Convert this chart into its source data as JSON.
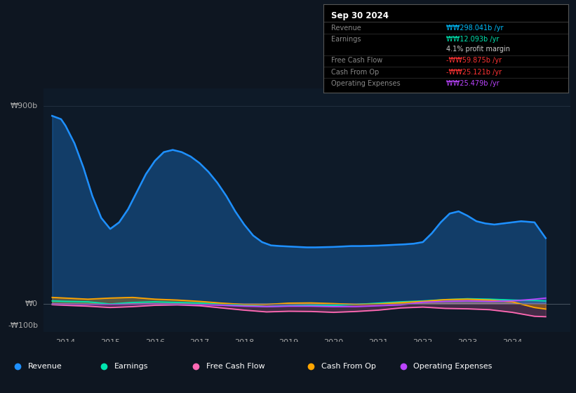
{
  "bg_color": "#0e1621",
  "plot_bg_color": "#0e1a28",
  "title": "Sep 30 2024",
  "info_box_rows": [
    {
      "label": "Revenue",
      "value": "₩₩298.041b /yr",
      "value_color": "#00bfff"
    },
    {
      "label": "Earnings",
      "value": "₩₩12.093b /yr",
      "value_color": "#00e5b0"
    },
    {
      "label": "",
      "value": "4.1% profit margin",
      "value_color": "#cccccc"
    },
    {
      "label": "Free Cash Flow",
      "value": "-₩₩59.875b /yr",
      "value_color": "#ff3333"
    },
    {
      "label": "Cash From Op",
      "value": "-₩₩25.121b /yr",
      "value_color": "#ff3333"
    },
    {
      "label": "Operating Expenses",
      "value": "₩₩25.479b /yr",
      "value_color": "#bb44ff"
    }
  ],
  "ylabel_top": "₩900b",
  "ylabel_zero": "₩0",
  "ylabel_bottom": "-₩100b",
  "ylim": [
    -130,
    980
  ],
  "xlim": [
    2013.5,
    2025.3
  ],
  "xtick_labels": [
    "2014",
    "2015",
    "2016",
    "2017",
    "2018",
    "2019",
    "2020",
    "2021",
    "2022",
    "2023",
    "2024"
  ],
  "xtick_pos": [
    2014,
    2015,
    2016,
    2017,
    2018,
    2019,
    2020,
    2021,
    2022,
    2023,
    2024
  ],
  "legend": [
    {
      "label": "Revenue",
      "color": "#1e90ff"
    },
    {
      "label": "Earnings",
      "color": "#00e5b0"
    },
    {
      "label": "Free Cash Flow",
      "color": "#ff69b4"
    },
    {
      "label": "Cash From Op",
      "color": "#ffa500"
    },
    {
      "label": "Operating Expenses",
      "color": "#bb44ff"
    }
  ],
  "revenue_x": [
    2013.7,
    2013.9,
    2014.0,
    2014.2,
    2014.4,
    2014.6,
    2014.8,
    2015.0,
    2015.2,
    2015.4,
    2015.6,
    2015.8,
    2016.0,
    2016.2,
    2016.4,
    2016.6,
    2016.8,
    2017.0,
    2017.2,
    2017.4,
    2017.6,
    2017.8,
    2018.0,
    2018.2,
    2018.4,
    2018.6,
    2018.8,
    2019.0,
    2019.2,
    2019.4,
    2019.6,
    2019.8,
    2020.0,
    2020.2,
    2020.4,
    2020.6,
    2020.8,
    2021.0,
    2021.2,
    2021.4,
    2021.6,
    2021.8,
    2022.0,
    2022.2,
    2022.4,
    2022.6,
    2022.8,
    2023.0,
    2023.2,
    2023.4,
    2023.6,
    2023.8,
    2024.0,
    2024.2,
    2024.5,
    2024.75
  ],
  "revenue_y": [
    855,
    840,
    810,
    730,
    620,
    490,
    390,
    340,
    370,
    430,
    510,
    590,
    650,
    690,
    700,
    690,
    670,
    640,
    600,
    550,
    490,
    420,
    360,
    310,
    280,
    265,
    262,
    260,
    258,
    256,
    256,
    257,
    258,
    260,
    262,
    262,
    263,
    264,
    266,
    268,
    270,
    273,
    280,
    320,
    370,
    410,
    420,
    400,
    375,
    365,
    360,
    365,
    370,
    375,
    370,
    298
  ],
  "earnings_x": [
    2013.7,
    2014.0,
    2014.5,
    2015.0,
    2015.5,
    2016.0,
    2016.5,
    2017.0,
    2017.5,
    2018.0,
    2018.5,
    2019.0,
    2019.5,
    2020.0,
    2020.5,
    2021.0,
    2021.5,
    2022.0,
    2022.5,
    2023.0,
    2023.5,
    2024.0,
    2024.5,
    2024.75
  ],
  "earnings_y": [
    12,
    10,
    8,
    -2,
    5,
    8,
    5,
    2,
    -3,
    -8,
    -14,
    -10,
    -8,
    -8,
    -4,
    2,
    8,
    12,
    18,
    22,
    20,
    16,
    14,
    12
  ],
  "fcf_x": [
    2013.7,
    2014.0,
    2014.5,
    2015.0,
    2015.5,
    2016.0,
    2016.5,
    2017.0,
    2017.5,
    2018.0,
    2018.5,
    2019.0,
    2019.5,
    2020.0,
    2020.5,
    2021.0,
    2021.5,
    2022.0,
    2022.5,
    2023.0,
    2023.5,
    2024.0,
    2024.5,
    2024.75
  ],
  "fcf_y": [
    -5,
    -8,
    -12,
    -18,
    -14,
    -8,
    -6,
    -10,
    -20,
    -30,
    -38,
    -35,
    -36,
    -40,
    -36,
    -30,
    -20,
    -16,
    -22,
    -24,
    -28,
    -40,
    -58,
    -60
  ],
  "cfo_x": [
    2013.7,
    2014.0,
    2014.5,
    2015.0,
    2015.5,
    2016.0,
    2016.5,
    2017.0,
    2017.5,
    2018.0,
    2018.5,
    2019.0,
    2019.5,
    2020.0,
    2020.5,
    2021.0,
    2021.5,
    2022.0,
    2022.5,
    2023.0,
    2023.5,
    2024.0,
    2024.5,
    2024.75
  ],
  "cfo_y": [
    28,
    25,
    20,
    25,
    28,
    20,
    16,
    10,
    2,
    -4,
    -4,
    2,
    3,
    0,
    -4,
    -2,
    4,
    10,
    18,
    20,
    16,
    8,
    -18,
    -25
  ],
  "opex_x": [
    2013.7,
    2014.0,
    2014.5,
    2015.0,
    2015.5,
    2016.0,
    2016.5,
    2017.0,
    2017.5,
    2018.0,
    2018.5,
    2019.0,
    2019.5,
    2020.0,
    2020.5,
    2021.0,
    2021.5,
    2022.0,
    2022.5,
    2023.0,
    2023.5,
    2024.0,
    2024.5,
    2024.75
  ],
  "opex_y": [
    -2,
    -3,
    -4,
    -4,
    -3,
    -2,
    -3,
    -5,
    -8,
    -12,
    -14,
    -12,
    -12,
    -14,
    -14,
    -10,
    -6,
    6,
    10,
    12,
    10,
    12,
    20,
    25
  ]
}
